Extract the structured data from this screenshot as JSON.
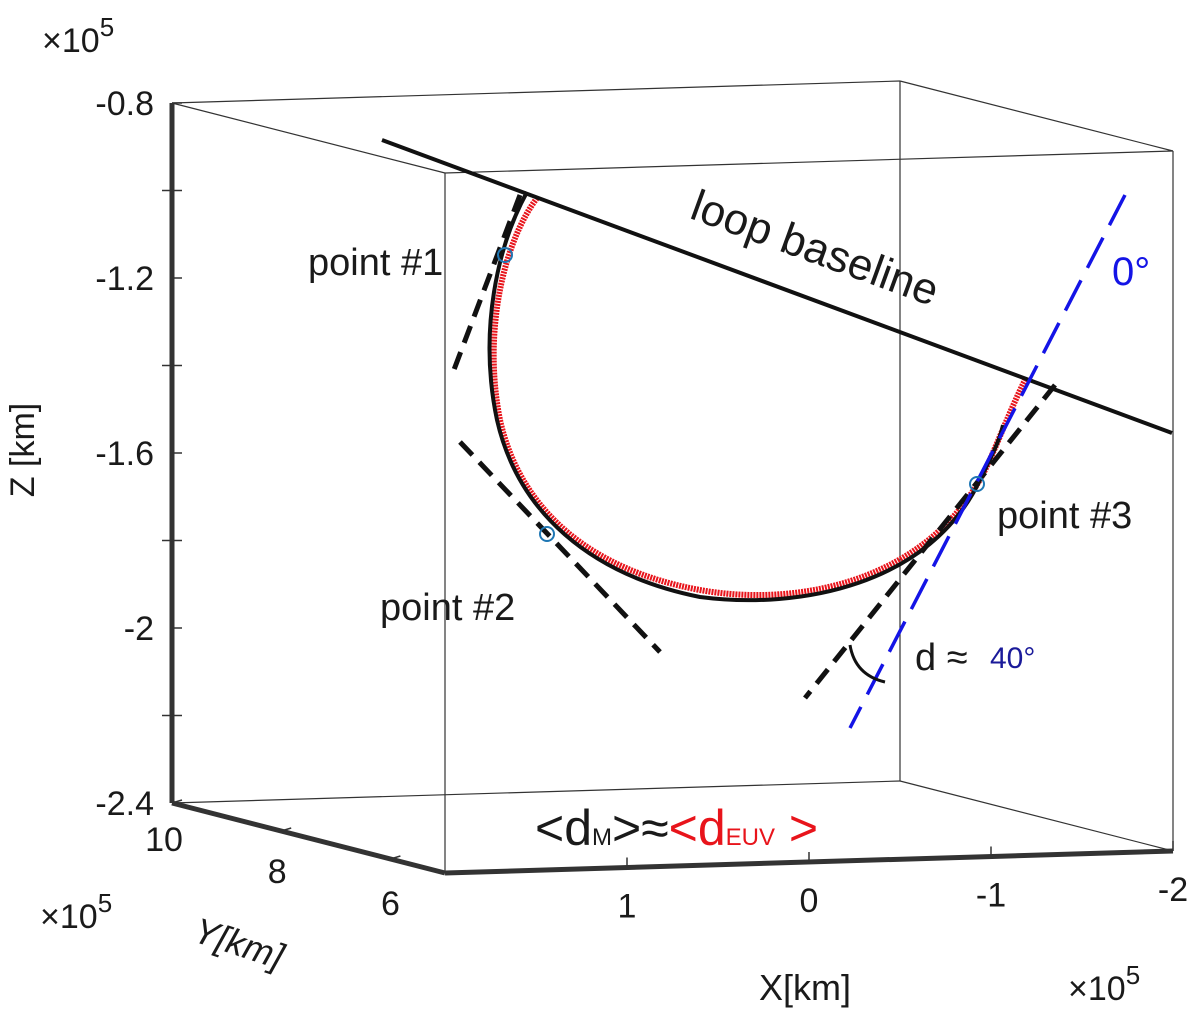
{
  "chart_data": {
    "type": "box3d",
    "xlabel": "X[km]",
    "ylabel": "Y[km]",
    "zlabel": "Z [km]",
    "xlim": [
      2,
      -2
    ],
    "ylim": [
      10,
      5
    ],
    "zlim": [
      -2.4,
      -0.8
    ],
    "xticks": [
      1,
      0,
      -1,
      -2
    ],
    "yticks": [
      10,
      8,
      6
    ],
    "zticks": [
      -0.8,
      -1.2,
      -1.6,
      -2,
      -2.4
    ],
    "zminor": [
      -1,
      -1.4,
      -1.8,
      -2.2
    ],
    "x_multiplier": {
      "base": "×10",
      "exponent": "5"
    },
    "y_multiplier": {
      "base": "×10",
      "exponent": "5"
    },
    "z_multiplier": {
      "base": "×10",
      "exponent": "5"
    },
    "annotations": {
      "baseline": "loop baseline",
      "zero_angle": "0°",
      "point1": "point #1",
      "point2": "point #2",
      "point3": "point #3",
      "d_prefix": "d ≈",
      "d_value": "40°",
      "ratio": {
        "open1": "<d",
        "sub1": "M",
        "close1": ">≈",
        "open2": "<d",
        "sub2": "EUV",
        "close2": " >"
      }
    }
  }
}
